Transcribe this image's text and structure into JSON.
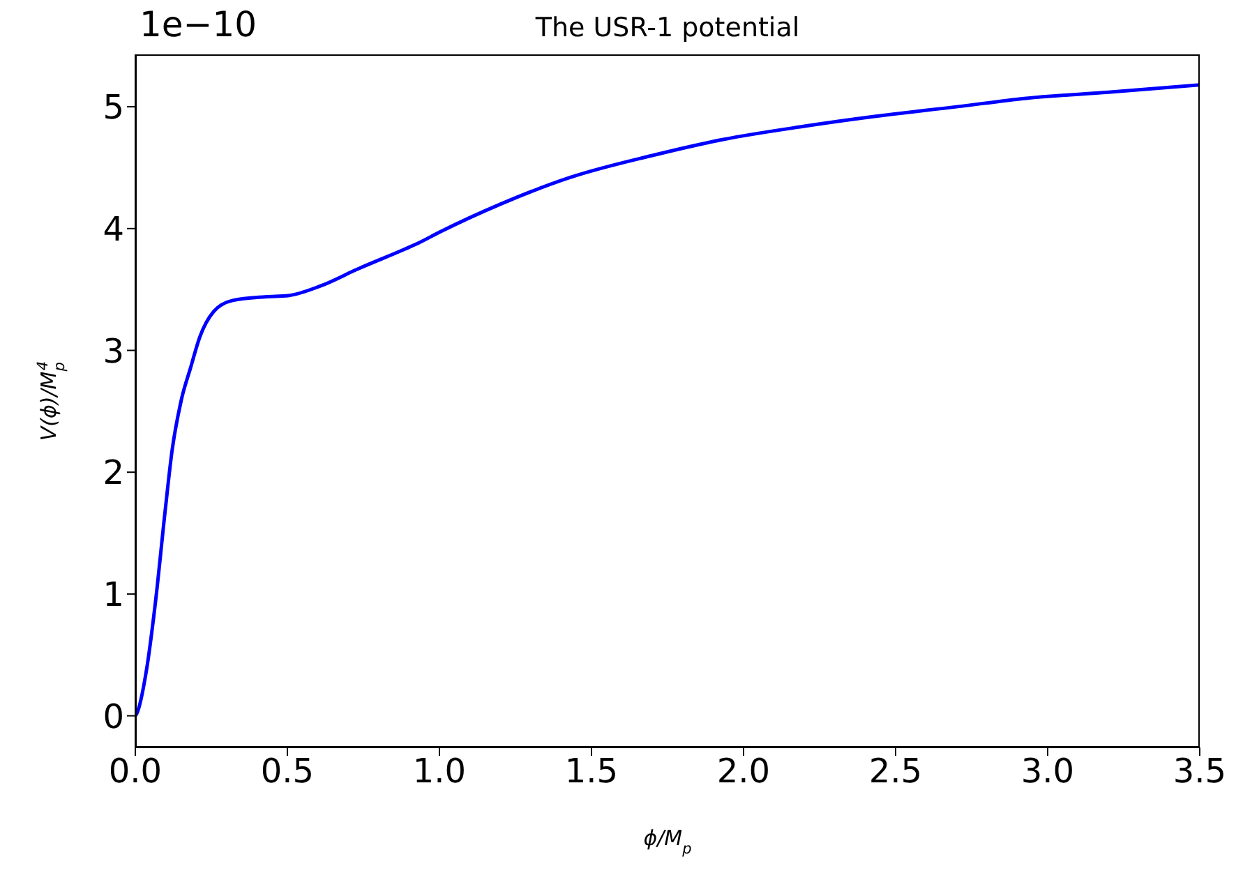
{
  "chart_data": {
    "type": "line",
    "title": "The USR-1 potential",
    "xlabel": "ϕ/M$_{p}$",
    "ylabel": "V(ϕ)/M$_{p}$$^{4}$",
    "annotations": [
      "1e−10"
    ],
    "x": [
      0,
      0.005,
      0.037,
      0.067,
      0.098,
      0.121,
      0.151,
      0.182,
      0.212,
      0.258,
      0.32,
      0.427,
      0.503,
      0.61,
      0.733,
      0.885,
      0.93,
      1.0,
      1.2,
      1.43,
      1.7,
      1.93,
      2.2,
      2.43,
      2.7,
      2.93,
      3.2,
      3.5
    ],
    "series": [
      {
        "color": "#0000ff",
        "values": [
          0,
          0.02,
          0.38,
          0.95,
          1.68,
          2.18,
          2.59,
          2.86,
          3.11,
          3.32,
          3.41,
          3.44,
          3.45,
          3.53,
          3.67,
          3.83,
          3.88,
          3.97,
          4.2,
          4.42,
          4.6,
          4.73,
          4.84,
          4.92,
          5.0,
          5.07,
          5.12,
          5.18
        ]
      }
    ],
    "xlim": [
      0,
      3.5
    ],
    "xticks": [
      {
        "value": 0,
        "label": "0.0"
      },
      0.5,
      {
        "value": 1,
        "label": "1.0"
      },
      1.5,
      {
        "value": 2,
        "label": "2.0"
      },
      2.5,
      {
        "value": 3,
        "label": "3.0"
      },
      3.5
    ],
    "ylim": [
      -0.26,
      5.43
    ],
    "yticks": [
      0,
      1,
      2,
      3,
      4,
      5
    ],
    "marker": "none",
    "line_style": "solid"
  }
}
